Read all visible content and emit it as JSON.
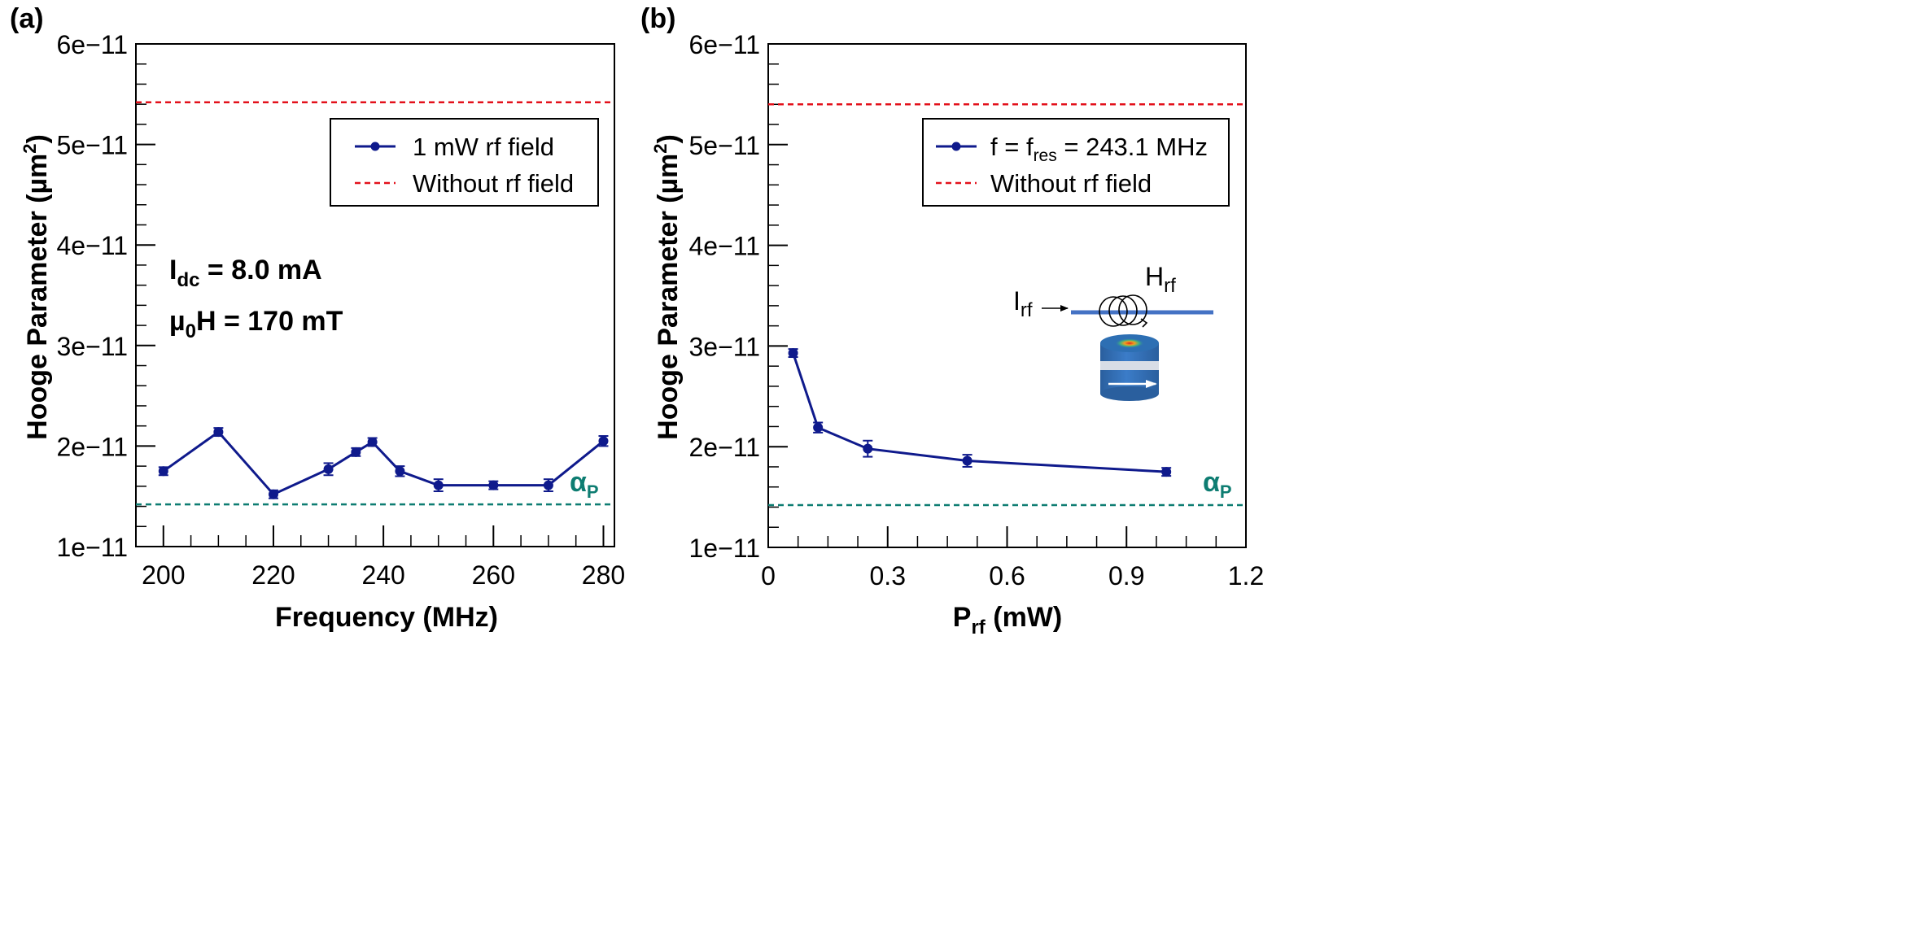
{
  "chart_data": [
    {
      "type": "line",
      "panel_label": "(a)",
      "xlabel": "Frequency (MHz)",
      "ylabel": "Hooge Parameter (µm",
      "ylabel_sup": "2",
      "ylabel_close": ")",
      "xlim": [
        195,
        282
      ],
      "ylim": [
        1e-11,
        6e-11
      ],
      "xticks": [
        200,
        220,
        240,
        260,
        280
      ],
      "xtick_labels": [
        "200",
        "220",
        "240",
        "260",
        "280"
      ],
      "yticks": [
        1e-11,
        2e-11,
        3e-11,
        4e-11,
        5e-11,
        6e-11
      ],
      "ytick_labels": [
        "1e−11",
        "2e−11",
        "3e−11",
        "4e−11",
        "5e−11",
        "6e−11"
      ],
      "grid": false,
      "series": [
        {
          "name": "1 mW rf field",
          "color": "#0f1a8c",
          "style": "line-marker",
          "x": [
            200,
            210,
            220,
            230,
            235,
            238,
            243,
            250,
            260,
            270,
            280
          ],
          "values": [
            1.75e-11,
            2.14e-11,
            1.52e-11,
            1.77e-11,
            1.94e-11,
            2.04e-11,
            1.75e-11,
            1.61e-11,
            1.61e-11,
            1.61e-11,
            2.05e-11
          ],
          "errors": [
            4e-13,
            4e-13,
            4e-13,
            6e-13,
            4e-13,
            4e-13,
            5e-13,
            6e-13,
            4e-13,
            6e-13,
            5e-13
          ]
        },
        {
          "name": "Without rf field",
          "color": "#e3111b",
          "style": "dashed",
          "value": 5.42e-11
        },
        {
          "name": "αP",
          "color": "#0e7d72",
          "style": "dashed",
          "value": 1.42e-11
        }
      ],
      "alpha_label": "α",
      "alpha_sub": "P",
      "annotations": {
        "idc": {
          "main": "I",
          "sub": "dc",
          "rest": " = 8.0 mA"
        },
        "field": {
          "main": "µ",
          "sub": "0",
          "rest": "H = 170 mT"
        }
      },
      "legend": {
        "position": "top-right",
        "entries": [
          "1 mW rf field",
          "Without rf field"
        ]
      }
    },
    {
      "type": "line",
      "panel_label": "(b)",
      "xlabel_main": "P",
      "xlabel_sub": "rf",
      "xlabel_rest": " (mW)",
      "ylabel": "Hooge Parameter (µm",
      "ylabel_sup": "2",
      "ylabel_close": ")",
      "xlim": [
        0,
        1.2
      ],
      "ylim": [
        1e-11,
        6e-11
      ],
      "xticks": [
        0,
        0.3,
        0.6,
        0.9,
        1.2
      ],
      "xtick_labels": [
        "0",
        "0.3",
        "0.6",
        "0.9",
        "1.2"
      ],
      "yticks": [
        1e-11,
        2e-11,
        3e-11,
        4e-11,
        5e-11,
        6e-11
      ],
      "ytick_labels": [
        "1e−11",
        "2e−11",
        "3e−11",
        "4e−11",
        "5e−11",
        "6e−11"
      ],
      "grid": false,
      "series": [
        {
          "name": "f = fres = 243.1 MHz",
          "legend_main": "f = f",
          "legend_sub": "res",
          "legend_rest": " = 243.1 MHz",
          "color": "#0f1a8c",
          "style": "line-marker",
          "x": [
            0.0625,
            0.125,
            0.25,
            0.5,
            1.0
          ],
          "values": [
            2.93e-11,
            2.19e-11,
            1.98e-11,
            1.86e-11,
            1.75e-11
          ],
          "errors": [
            4e-13,
            5e-13,
            8e-13,
            6e-13,
            4e-13
          ]
        },
        {
          "name": "Without rf field",
          "color": "#e3111b",
          "style": "dashed",
          "value": 5.4e-11
        },
        {
          "name": "αP",
          "color": "#0e7d72",
          "style": "dashed",
          "value": 1.42e-11
        }
      ],
      "alpha_label": "α",
      "alpha_sub": "P",
      "inset": {
        "current": {
          "main": "I",
          "sub": "rf"
        },
        "field": {
          "main": "H",
          "sub": "rf"
        }
      },
      "legend": {
        "position": "top-right",
        "entries": [
          "f = fres = 243.1 MHz",
          "Without rf field"
        ]
      }
    }
  ]
}
